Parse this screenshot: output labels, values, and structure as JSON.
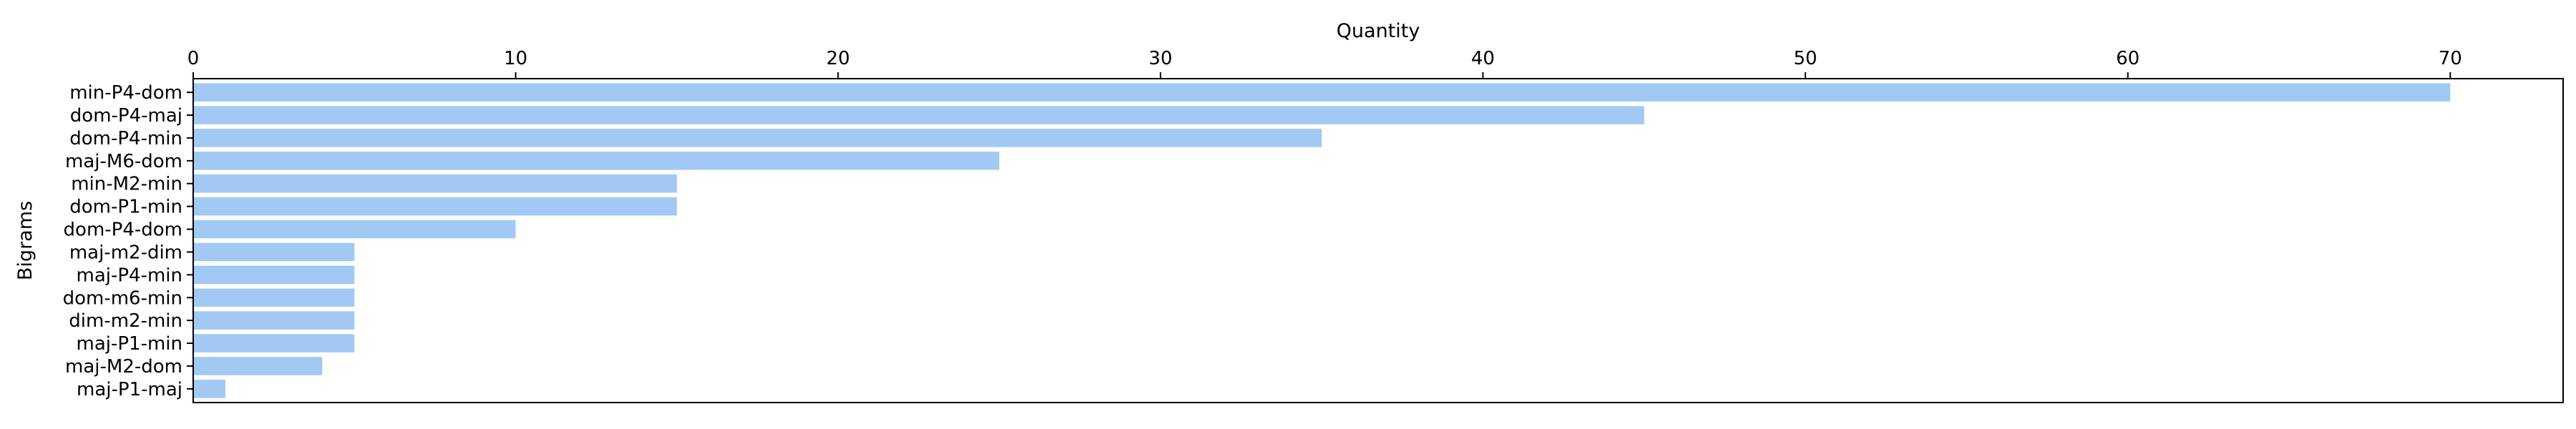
{
  "chart_data": {
    "type": "bar",
    "orientation": "horizontal",
    "xlabel": "Quantity",
    "ylabel": "Bigrams",
    "xlim": [
      0,
      73.5
    ],
    "x_ticks": [
      0,
      10,
      20,
      30,
      40,
      50,
      60,
      70
    ],
    "x_axis_position": "top",
    "grid": false,
    "bar_color": "#a1c9f4",
    "categories": [
      "min-P4-dom",
      "dom-P4-maj",
      "dom-P4-min",
      "maj-M6-dom",
      "min-M2-min",
      "dom-P1-min",
      "dom-P4-dom",
      "maj-m2-dim",
      "maj-P4-min",
      "dom-m6-min",
      "dim-m2-min",
      "maj-P1-min",
      "maj-M2-dom",
      "maj-P1-maj"
    ],
    "values": [
      70,
      45,
      35,
      25,
      15,
      15,
      10,
      5,
      5,
      5,
      5,
      5,
      4,
      1
    ]
  }
}
